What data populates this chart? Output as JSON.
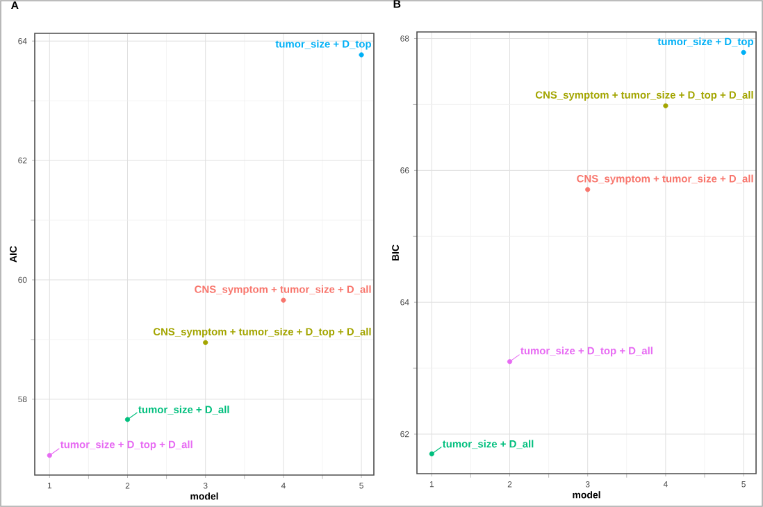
{
  "chart_data": [
    {
      "type": "scatter",
      "title": "A",
      "xlabel": "model",
      "ylabel": "AIC",
      "xlim": [
        0.81,
        5.16
      ],
      "xticks": [
        1,
        2,
        3,
        4,
        5
      ],
      "ylim": [
        56.73,
        64.13
      ],
      "yticks": [
        58,
        60,
        62,
        64
      ],
      "grid": true,
      "x": [
        1,
        2,
        3,
        4,
        5
      ],
      "values": [
        57.06,
        57.66,
        58.95,
        59.66,
        63.77
      ],
      "colors": [
        "#E76BF3",
        "#00BF7D",
        "#A3A500",
        "#F8766D",
        "#00B0F6"
      ],
      "annotations": [
        {
          "text": "tumor_size + D_top + D_all",
          "x": 1,
          "y": 57.06
        },
        {
          "text": "tumor_size + D_all",
          "x": 2,
          "y": 57.66
        },
        {
          "text": "CNS_symptom + tumor_size + D_top + D_all",
          "x": 3,
          "y": 58.95
        },
        {
          "text": "CNS_symptom + tumor_size + D_all",
          "x": 4,
          "y": 59.66
        },
        {
          "text": "tumor_size + D_top",
          "x": 5,
          "y": 63.77
        }
      ]
    },
    {
      "type": "scatter",
      "title": "B",
      "xlabel": "model",
      "ylabel": "BIC",
      "xlim": [
        0.81,
        5.16
      ],
      "xticks": [
        1,
        2,
        3,
        4,
        5
      ],
      "ylim": [
        61.4,
        68.1
      ],
      "yticks": [
        62,
        64,
        66,
        68
      ],
      "grid": true,
      "x": [
        1,
        2,
        3,
        4,
        5
      ],
      "values": [
        61.7,
        63.1,
        65.71,
        66.98,
        67.79
      ],
      "colors": [
        "#00BF7D",
        "#E76BF3",
        "#F8766D",
        "#A3A500",
        "#00B0F6"
      ],
      "annotations": [
        {
          "text": "tumor_size + D_all",
          "x": 1,
          "y": 61.7
        },
        {
          "text": "tumor_size + D_top + D_all",
          "x": 2,
          "y": 63.1
        },
        {
          "text": "CNS_symptom + tumor_size + D_all",
          "x": 3,
          "y": 65.71
        },
        {
          "text": "CNS_symptom + tumor_size + D_top + D_all",
          "x": 4,
          "y": 66.98
        },
        {
          "text": "tumor_size + D_top",
          "x": 5,
          "y": 67.79
        }
      ]
    }
  ]
}
